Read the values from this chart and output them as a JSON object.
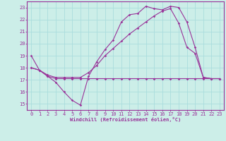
{
  "bg_color": "#cceee8",
  "grid_color": "#aadddd",
  "line_color": "#993399",
  "xlabel": "Windchill (Refroidissement éolien,°C)",
  "xlim": [
    -0.5,
    23.5
  ],
  "ylim": [
    14.5,
    23.5
  ],
  "yticks": [
    15,
    16,
    17,
    18,
    19,
    20,
    21,
    22,
    23
  ],
  "xticks": [
    0,
    1,
    2,
    3,
    4,
    5,
    6,
    7,
    8,
    9,
    10,
    11,
    12,
    13,
    14,
    15,
    16,
    17,
    18,
    19,
    20,
    21,
    22,
    23
  ],
  "line1_x": [
    0,
    1,
    2,
    3,
    4,
    5,
    6,
    7,
    8,
    9,
    10,
    11,
    12,
    13,
    14,
    15,
    16,
    17,
    18,
    19,
    20,
    21,
    22,
    23
  ],
  "line1_y": [
    19.0,
    17.8,
    17.3,
    16.8,
    16.0,
    15.3,
    14.9,
    17.3,
    18.5,
    19.5,
    20.3,
    21.8,
    22.4,
    22.5,
    23.1,
    22.9,
    22.8,
    23.1,
    23.0,
    21.8,
    19.7,
    17.2,
    17.1,
    17.1
  ],
  "line2_x": [
    0,
    1,
    2,
    3,
    4,
    5,
    6,
    7,
    8,
    9,
    10,
    11,
    12,
    13,
    14,
    15,
    16,
    17,
    18,
    19,
    20,
    21,
    22,
    23
  ],
  "line2_y": [
    18.0,
    17.8,
    17.3,
    17.1,
    17.1,
    17.1,
    17.1,
    17.1,
    17.1,
    17.1,
    17.1,
    17.1,
    17.1,
    17.1,
    17.1,
    17.1,
    17.1,
    17.1,
    17.1,
    17.1,
    17.1,
    17.1,
    17.1,
    17.1
  ],
  "line3_x": [
    0,
    1,
    2,
    3,
    4,
    5,
    6,
    7,
    8,
    9,
    10,
    11,
    12,
    13,
    14,
    15,
    16,
    17,
    18,
    19,
    20,
    21,
    22,
    23
  ],
  "line3_y": [
    18.0,
    17.8,
    17.4,
    17.2,
    17.2,
    17.2,
    17.2,
    17.6,
    18.2,
    19.0,
    19.6,
    20.2,
    20.8,
    21.3,
    21.8,
    22.3,
    22.7,
    22.9,
    21.7,
    19.7,
    19.2,
    17.2,
    17.1,
    17.1
  ],
  "line_width": 0.8,
  "marker_size": 1.8,
  "xlabel_fontsize": 5.0,
  "tick_fontsize": 5.0
}
